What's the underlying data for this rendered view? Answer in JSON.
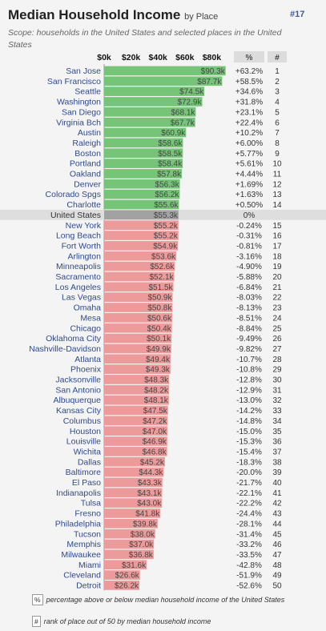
{
  "title": "Median Household Income",
  "title_suffix": "by Place",
  "rank_tag": "#17",
  "scope": "Scope: households in the United States and selected places in the United States",
  "legend": {
    "pct_box": "%",
    "pct_text": "percentage above or below median household income of the United States",
    "rank_box": "#",
    "rank_text": "rank of place out of 50 by median household income"
  },
  "colors": {
    "above": "#76c478",
    "national": "#a2a2a2",
    "below": "#ec9a9a"
  },
  "chart_data": {
    "type": "bar",
    "orientation": "horizontal",
    "x_ticks": [
      "$0k",
      "$20k",
      "$40k",
      "$60k",
      "$80k"
    ],
    "xlim": [
      0,
      92
    ],
    "unit": "thousand USD",
    "column_headers": {
      "pct": "%",
      "rank": "#"
    },
    "rows": [
      {
        "place": "San Jose",
        "label": "$90.3k",
        "value": 90.3,
        "pct": "+63.2%",
        "rank": "1"
      },
      {
        "place": "San Francisco",
        "label": "$87.7k",
        "value": 87.7,
        "pct": "+58.5%",
        "rank": "2"
      },
      {
        "place": "Seattle",
        "label": "$74.5k",
        "value": 74.5,
        "pct": "+34.6%",
        "rank": "3"
      },
      {
        "place": "Washington",
        "label": "$72.9k",
        "value": 72.9,
        "pct": "+31.8%",
        "rank": "4"
      },
      {
        "place": "San Diego",
        "label": "$68.1k",
        "value": 68.1,
        "pct": "+23.1%",
        "rank": "5"
      },
      {
        "place": "Virginia Bch",
        "label": "$67.7k",
        "value": 67.7,
        "pct": "+22.4%",
        "rank": "6"
      },
      {
        "place": "Austin",
        "label": "$60.9k",
        "value": 60.9,
        "pct": "+10.2%",
        "rank": "7"
      },
      {
        "place": "Raleigh",
        "label": "$58.6k",
        "value": 58.6,
        "pct": "+6.00%",
        "rank": "8"
      },
      {
        "place": "Boston",
        "label": "$58.5k",
        "value": 58.5,
        "pct": "+5.77%",
        "rank": "9"
      },
      {
        "place": "Portland",
        "label": "$58.4k",
        "value": 58.4,
        "pct": "+5.61%",
        "rank": "10"
      },
      {
        "place": "Oakland",
        "label": "$57.8k",
        "value": 57.8,
        "pct": "+4.44%",
        "rank": "11"
      },
      {
        "place": "Denver",
        "label": "$56.3k",
        "value": 56.3,
        "pct": "+1.69%",
        "rank": "12"
      },
      {
        "place": "Colorado Spgs",
        "label": "$56.2k",
        "value": 56.2,
        "pct": "+1.63%",
        "rank": "13"
      },
      {
        "place": "Charlotte",
        "label": "$55.6k",
        "value": 55.6,
        "pct": "+0.50%",
        "rank": "14"
      },
      {
        "place": "United States",
        "label": "$55.3k",
        "value": 55.3,
        "pct": "0%",
        "rank": "",
        "national": true
      },
      {
        "place": "New York",
        "label": "$55.2k",
        "value": 55.2,
        "pct": "-0.24%",
        "rank": "15"
      },
      {
        "place": "Long Beach",
        "label": "$55.2k",
        "value": 55.2,
        "pct": "-0.31%",
        "rank": "16"
      },
      {
        "place": "Fort Worth",
        "label": "$54.9k",
        "value": 54.9,
        "pct": "-0.81%",
        "rank": "17"
      },
      {
        "place": "Arlington",
        "label": "$53.6k",
        "value": 53.6,
        "pct": "-3.16%",
        "rank": "18"
      },
      {
        "place": "Minneapolis",
        "label": "$52.6k",
        "value": 52.6,
        "pct": "-4.90%",
        "rank": "19"
      },
      {
        "place": "Sacramento",
        "label": "$52.1k",
        "value": 52.1,
        "pct": "-5.88%",
        "rank": "20"
      },
      {
        "place": "Los Angeles",
        "label": "$51.5k",
        "value": 51.5,
        "pct": "-6.84%",
        "rank": "21"
      },
      {
        "place": "Las Vegas",
        "label": "$50.9k",
        "value": 50.9,
        "pct": "-8.03%",
        "rank": "22"
      },
      {
        "place": "Omaha",
        "label": "$50.8k",
        "value": 50.8,
        "pct": "-8.13%",
        "rank": "23"
      },
      {
        "place": "Mesa",
        "label": "$50.6k",
        "value": 50.6,
        "pct": "-8.51%",
        "rank": "24"
      },
      {
        "place": "Chicago",
        "label": "$50.4k",
        "value": 50.4,
        "pct": "-8.84%",
        "rank": "25"
      },
      {
        "place": "Oklahoma City",
        "label": "$50.1k",
        "value": 50.1,
        "pct": "-9.49%",
        "rank": "26"
      },
      {
        "place": "Nashville-Davidson",
        "label": "$49.9k",
        "value": 49.9,
        "pct": "-9.82%",
        "rank": "27"
      },
      {
        "place": "Atlanta",
        "label": "$49.4k",
        "value": 49.4,
        "pct": "-10.7%",
        "rank": "28"
      },
      {
        "place": "Phoenix",
        "label": "$49.3k",
        "value": 49.3,
        "pct": "-10.8%",
        "rank": "29"
      },
      {
        "place": "Jacksonville",
        "label": "$48.3k",
        "value": 48.3,
        "pct": "-12.8%",
        "rank": "30"
      },
      {
        "place": "San Antonio",
        "label": "$48.2k",
        "value": 48.2,
        "pct": "-12.9%",
        "rank": "31"
      },
      {
        "place": "Albuquerque",
        "label": "$48.1k",
        "value": 48.1,
        "pct": "-13.0%",
        "rank": "32"
      },
      {
        "place": "Kansas City",
        "label": "$47.5k",
        "value": 47.5,
        "pct": "-14.2%",
        "rank": "33"
      },
      {
        "place": "Columbus",
        "label": "$47.2k",
        "value": 47.2,
        "pct": "-14.8%",
        "rank": "34"
      },
      {
        "place": "Houston",
        "label": "$47.0k",
        "value": 47.0,
        "pct": "-15.0%",
        "rank": "35"
      },
      {
        "place": "Louisville",
        "label": "$46.9k",
        "value": 46.9,
        "pct": "-15.3%",
        "rank": "36"
      },
      {
        "place": "Wichita",
        "label": "$46.8k",
        "value": 46.8,
        "pct": "-15.4%",
        "rank": "37"
      },
      {
        "place": "Dallas",
        "label": "$45.2k",
        "value": 45.2,
        "pct": "-18.3%",
        "rank": "38"
      },
      {
        "place": "Baltimore",
        "label": "$44.3k",
        "value": 44.3,
        "pct": "-20.0%",
        "rank": "39"
      },
      {
        "place": "El Paso",
        "label": "$43.3k",
        "value": 43.3,
        "pct": "-21.7%",
        "rank": "40"
      },
      {
        "place": "Indianapolis",
        "label": "$43.1k",
        "value": 43.1,
        "pct": "-22.1%",
        "rank": "41"
      },
      {
        "place": "Tulsa",
        "label": "$43.0k",
        "value": 43.0,
        "pct": "-22.2%",
        "rank": "42"
      },
      {
        "place": "Fresno",
        "label": "$41.8k",
        "value": 41.8,
        "pct": "-24.4%",
        "rank": "43"
      },
      {
        "place": "Philadelphia",
        "label": "$39.8k",
        "value": 39.8,
        "pct": "-28.1%",
        "rank": "44"
      },
      {
        "place": "Tucson",
        "label": "$38.0k",
        "value": 38.0,
        "pct": "-31.4%",
        "rank": "45"
      },
      {
        "place": "Memphis",
        "label": "$37.0k",
        "value": 37.0,
        "pct": "-33.2%",
        "rank": "46"
      },
      {
        "place": "Milwaukee",
        "label": "$36.8k",
        "value": 36.8,
        "pct": "-33.5%",
        "rank": "47"
      },
      {
        "place": "Miami",
        "label": "$31.6k",
        "value": 31.6,
        "pct": "-42.8%",
        "rank": "48"
      },
      {
        "place": "Cleveland",
        "label": "$26.6k",
        "value": 26.6,
        "pct": "-51.9%",
        "rank": "49"
      },
      {
        "place": "Detroit",
        "label": "$26.2k",
        "value": 26.2,
        "pct": "-52.6%",
        "rank": "50"
      }
    ]
  }
}
